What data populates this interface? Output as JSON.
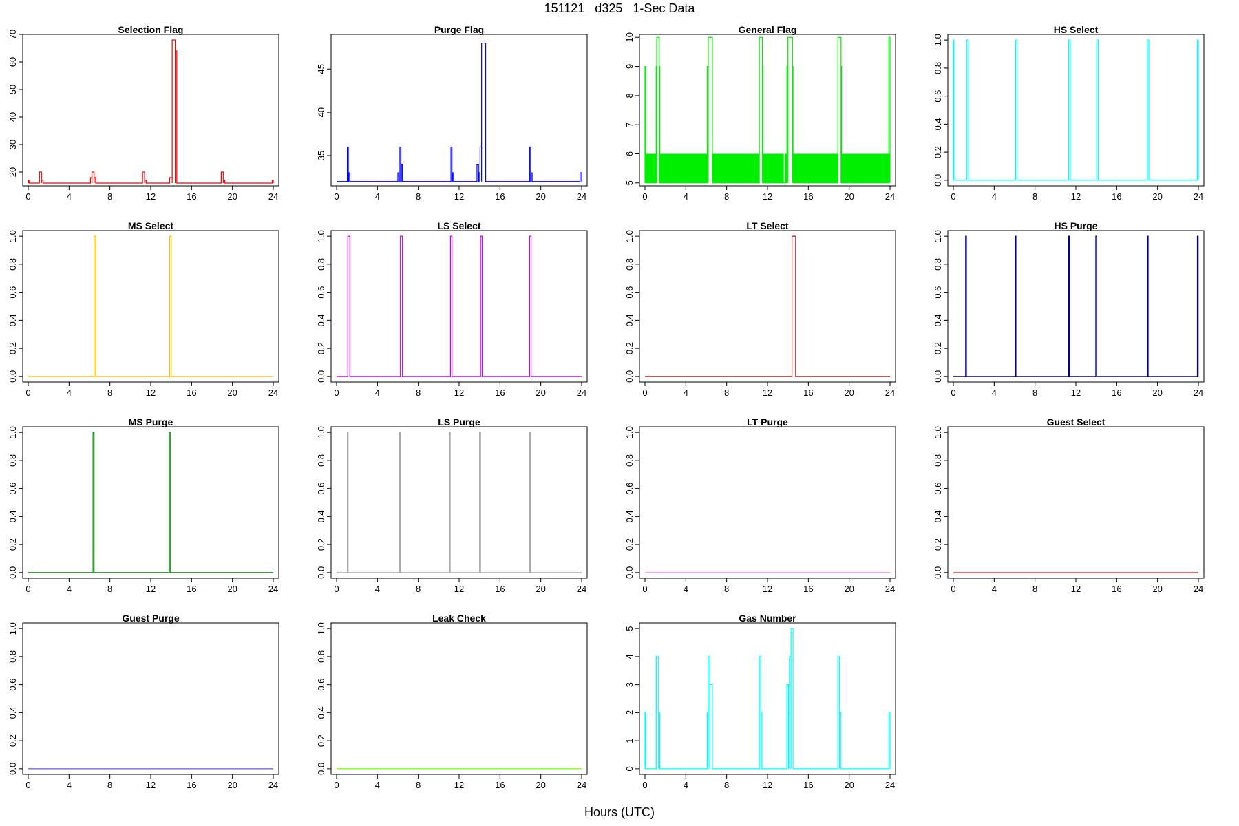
{
  "figure": {
    "title": "151121   d325   1-Sec Data",
    "xlabel": "Hours (UTC)"
  },
  "chart_data": [
    {
      "type": "line",
      "title": "Selection Flag",
      "color": "#ff0000",
      "xlim": [
        0,
        24
      ],
      "ylim": [
        15,
        70
      ],
      "x_ticks": [
        0,
        4,
        8,
        12,
        16,
        20,
        24
      ],
      "y_ticks": [
        20,
        30,
        40,
        50,
        60,
        70
      ],
      "baseline": 16,
      "pulses": [
        [
          0,
          0.08,
          17
        ],
        [
          1.1,
          1.3,
          20
        ],
        [
          1.3,
          1.45,
          17
        ],
        [
          6.1,
          6.25,
          18
        ],
        [
          6.25,
          6.45,
          20
        ],
        [
          6.45,
          6.6,
          18
        ],
        [
          11.2,
          11.4,
          20
        ],
        [
          11.4,
          11.55,
          17
        ],
        [
          13.85,
          14.1,
          18
        ],
        [
          14.1,
          14.4,
          68
        ],
        [
          14.4,
          14.55,
          64
        ],
        [
          18.9,
          19.1,
          20
        ],
        [
          19.1,
          19.25,
          17
        ],
        [
          23.9,
          24,
          17
        ]
      ]
    },
    {
      "type": "line",
      "title": "Purge Flag",
      "color": "#0000ff",
      "xlim": [
        0,
        24
      ],
      "ylim": [
        31.5,
        49
      ],
      "x_ticks": [
        0,
        4,
        8,
        12,
        16,
        20,
        24
      ],
      "y_ticks": [
        35,
        40,
        45
      ],
      "baseline": 32,
      "pulses": [
        [
          1.05,
          1.15,
          36
        ],
        [
          1.2,
          1.3,
          33
        ],
        [
          6.0,
          6.1,
          33
        ],
        [
          6.2,
          6.3,
          36
        ],
        [
          6.35,
          6.45,
          34
        ],
        [
          11.2,
          11.3,
          36
        ],
        [
          11.35,
          11.45,
          33
        ],
        [
          13.75,
          13.9,
          34
        ],
        [
          13.95,
          14.05,
          33
        ],
        [
          14.05,
          14.2,
          36
        ],
        [
          14.2,
          14.6,
          48
        ],
        [
          18.9,
          19.0,
          36
        ],
        [
          19.05,
          19.15,
          33
        ],
        [
          23.85,
          24,
          33
        ]
      ]
    },
    {
      "type": "line",
      "title": "General Flag",
      "color": "#00ee00",
      "xlim": [
        0,
        24
      ],
      "ylim": [
        4.9,
        10.1
      ],
      "x_ticks": [
        0,
        4,
        8,
        12,
        16,
        20,
        24
      ],
      "y_ticks": [
        5,
        6,
        7,
        8,
        9,
        10
      ],
      "baseline": 5,
      "bands": [
        [
          0,
          1.1
        ],
        [
          1.45,
          6.1
        ],
        [
          6.6,
          11.2
        ],
        [
          11.5,
          13.6
        ],
        [
          13.7,
          13.9
        ],
        [
          14.5,
          18.9
        ],
        [
          19.2,
          24
        ]
      ],
      "band_top": 6,
      "pulses": [
        [
          0,
          0.06,
          9
        ],
        [
          1.15,
          1.4,
          10
        ],
        [
          1.1,
          1.15,
          9
        ],
        [
          1.4,
          1.45,
          9
        ],
        [
          6.1,
          6.2,
          9
        ],
        [
          6.2,
          6.6,
          10
        ],
        [
          11.2,
          11.5,
          10
        ],
        [
          11.5,
          11.55,
          9
        ],
        [
          13.9,
          14.0,
          9
        ],
        [
          14.0,
          14.45,
          10
        ],
        [
          14.45,
          14.5,
          9
        ],
        [
          18.9,
          19.2,
          10
        ],
        [
          19.2,
          19.25,
          9
        ],
        [
          23.88,
          24,
          10
        ]
      ]
    },
    {
      "type": "line",
      "title": "HS Select",
      "color": "#00ffff",
      "xlim": [
        0,
        24
      ],
      "ylim": [
        -0.04,
        1.04
      ],
      "x_ticks": [
        0,
        4,
        8,
        12,
        16,
        20,
        24
      ],
      "y_ticks": [
        0,
        0.2,
        0.4,
        0.6,
        0.8,
        1
      ],
      "baseline": 0,
      "pulses": [
        [
          0,
          0.06,
          1
        ],
        [
          1.3,
          1.45,
          1
        ],
        [
          6.1,
          6.25,
          1
        ],
        [
          11.3,
          11.45,
          1
        ],
        [
          14.05,
          14.2,
          1
        ],
        [
          19.0,
          19.15,
          1
        ],
        [
          23.9,
          24,
          1
        ]
      ]
    },
    {
      "type": "line",
      "title": "MS Select",
      "color": "#ffbf00",
      "xlim": [
        0,
        24
      ],
      "ylim": [
        -0.04,
        1.04
      ],
      "x_ticks": [
        0,
        4,
        8,
        12,
        16,
        20,
        24
      ],
      "y_ticks": [
        0,
        0.2,
        0.4,
        0.6,
        0.8,
        1
      ],
      "baseline": 0,
      "pulses": [
        [
          6.45,
          6.6,
          1
        ],
        [
          13.85,
          14.0,
          1
        ]
      ]
    },
    {
      "type": "line",
      "title": "LS Select",
      "color": "#c000ff",
      "xlim": [
        0,
        24
      ],
      "ylim": [
        -0.04,
        1.04
      ],
      "x_ticks": [
        0,
        4,
        8,
        12,
        16,
        20,
        24
      ],
      "y_ticks": [
        0,
        0.2,
        0.4,
        0.6,
        0.8,
        1
      ],
      "baseline": 0,
      "pulses": [
        [
          1.1,
          1.3,
          1
        ],
        [
          6.25,
          6.45,
          1
        ],
        [
          11.15,
          11.3,
          1
        ],
        [
          14.1,
          14.25,
          1
        ],
        [
          18.9,
          19.05,
          1
        ]
      ]
    },
    {
      "type": "line",
      "title": "LT Select",
      "color": "#b22222",
      "xlim": [
        0,
        24
      ],
      "ylim": [
        -0.04,
        1.04
      ],
      "x_ticks": [
        0,
        4,
        8,
        12,
        16,
        20,
        24
      ],
      "y_ticks": [
        0,
        0.2,
        0.4,
        0.6,
        0.8,
        1
      ],
      "baseline": 0,
      "pulses": [
        [
          14.4,
          14.75,
          1
        ]
      ]
    },
    {
      "type": "line",
      "title": "HS Purge",
      "color": "#00008b",
      "xlim": [
        0,
        24
      ],
      "ylim": [
        -0.04,
        1.04
      ],
      "x_ticks": [
        0,
        4,
        8,
        12,
        16,
        20,
        24
      ],
      "y_ticks": [
        0,
        0.2,
        0.4,
        0.6,
        0.8,
        1
      ],
      "baseline": 0,
      "pulses": [
        [
          1.2,
          1.28,
          1
        ],
        [
          6.05,
          6.13,
          1
        ],
        [
          11.3,
          11.38,
          1
        ],
        [
          13.95,
          14.05,
          1
        ],
        [
          19.0,
          19.08,
          1
        ],
        [
          23.9,
          23.98,
          1
        ]
      ]
    },
    {
      "type": "line",
      "title": "MS Purge",
      "color": "#008000",
      "xlim": [
        0,
        24
      ],
      "ylim": [
        -0.04,
        1.04
      ],
      "x_ticks": [
        0,
        4,
        8,
        12,
        16,
        20,
        24
      ],
      "y_ticks": [
        0,
        0.2,
        0.4,
        0.6,
        0.8,
        1
      ],
      "baseline": 0,
      "pulses": [
        [
          6.35,
          6.45,
          1
        ],
        [
          13.8,
          13.9,
          1
        ]
      ]
    },
    {
      "type": "line",
      "title": "LS Purge",
      "color": "#aaaaaa",
      "xlim": [
        0,
        24
      ],
      "ylim": [
        -0.04,
        1.04
      ],
      "x_ticks": [
        0,
        4,
        8,
        12,
        16,
        20,
        24
      ],
      "y_ticks": [
        0,
        0.2,
        0.4,
        0.6,
        0.8,
        1
      ],
      "baseline": 0,
      "pulses": [
        [
          1.05,
          1.13,
          1
        ],
        [
          6.15,
          6.23,
          1
        ],
        [
          11.05,
          11.13,
          1
        ],
        [
          14.0,
          14.1,
          1
        ],
        [
          18.9,
          18.98,
          1
        ]
      ]
    },
    {
      "type": "line",
      "title": "LT Purge",
      "color": "#ee82ee",
      "xlim": [
        0,
        24
      ],
      "ylim": [
        -0.04,
        1.04
      ],
      "x_ticks": [
        0,
        4,
        8,
        12,
        16,
        20,
        24
      ],
      "y_ticks": [
        0,
        0.2,
        0.4,
        0.6,
        0.8,
        1
      ],
      "baseline": 0,
      "pulses": []
    },
    {
      "type": "line",
      "title": "Guest Select",
      "color": "#ff3030",
      "xlim": [
        0,
        24
      ],
      "ylim": [
        -0.04,
        1.04
      ],
      "x_ticks": [
        0,
        4,
        8,
        12,
        16,
        20,
        24
      ],
      "y_ticks": [
        0,
        0.2,
        0.4,
        0.6,
        0.8,
        1
      ],
      "baseline": 0,
      "pulses": []
    },
    {
      "type": "line",
      "title": "Guest Purge",
      "color": "#6a5acd",
      "xlim": [
        0,
        24
      ],
      "ylim": [
        -0.04,
        1.04
      ],
      "x_ticks": [
        0,
        4,
        8,
        12,
        16,
        20,
        24
      ],
      "y_ticks": [
        0,
        0.2,
        0.4,
        0.6,
        0.8,
        1
      ],
      "baseline": 0,
      "pulses": []
    },
    {
      "type": "line",
      "title": "Leak Check",
      "color": "#7cfc00",
      "xlim": [
        0,
        24
      ],
      "ylim": [
        -0.04,
        1.04
      ],
      "x_ticks": [
        0,
        4,
        8,
        12,
        16,
        20,
        24
      ],
      "y_ticks": [
        0,
        0.2,
        0.4,
        0.6,
        0.8,
        1
      ],
      "baseline": 0,
      "pulses": []
    },
    {
      "type": "line",
      "title": "Gas Number",
      "color": "#00ffff",
      "xlim": [
        0,
        24
      ],
      "ylim": [
        -0.2,
        5.2
      ],
      "x_ticks": [
        0,
        4,
        8,
        12,
        16,
        20,
        24
      ],
      "y_ticks": [
        0,
        1,
        2,
        3,
        4,
        5
      ],
      "baseline": 0,
      "pulses": [
        [
          0,
          0.06,
          2
        ],
        [
          1.1,
          1.3,
          4
        ],
        [
          1.3,
          1.45,
          2
        ],
        [
          6.1,
          6.2,
          2
        ],
        [
          6.2,
          6.35,
          4
        ],
        [
          6.35,
          6.6,
          3
        ],
        [
          11.2,
          11.35,
          4
        ],
        [
          11.35,
          11.45,
          2
        ],
        [
          13.9,
          14.05,
          3
        ],
        [
          14.05,
          14.15,
          2
        ],
        [
          14.15,
          14.3,
          4
        ],
        [
          14.3,
          14.5,
          5
        ],
        [
          18.9,
          19.05,
          4
        ],
        [
          19.05,
          19.2,
          2
        ],
        [
          23.9,
          24,
          2
        ]
      ]
    }
  ]
}
